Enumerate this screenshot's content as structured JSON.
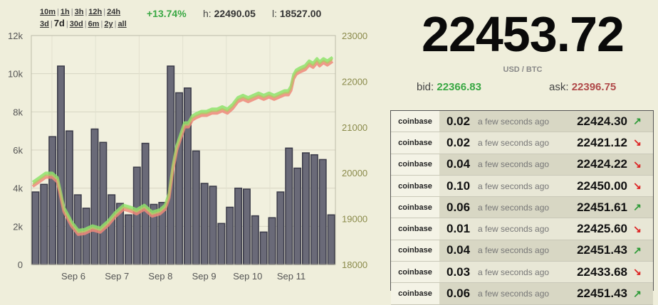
{
  "ranges": {
    "row1": [
      "10m",
      "1h",
      "3h",
      "12h",
      "24h"
    ],
    "row2": [
      "3d",
      "7d",
      "30d",
      "6m",
      "2y",
      "all"
    ],
    "active": "7d"
  },
  "stats": {
    "change": "+13.74%",
    "high_label": "h:",
    "high_value": "22490.05",
    "low_label": "l:",
    "low_value": "18527.00"
  },
  "price": {
    "last": "22453.72",
    "pair": "USD / BTC",
    "bid_label": "bid:",
    "bid_value": "22366.83",
    "ask_label": "ask:",
    "ask_value": "22396.75"
  },
  "trades": [
    {
      "exchange": "coinbase",
      "amount": "0.02",
      "time": "a few seconds ago",
      "price": "22424.30",
      "dir": "up"
    },
    {
      "exchange": "coinbase",
      "amount": "0.02",
      "time": "a few seconds ago",
      "price": "22421.12",
      "dir": "down"
    },
    {
      "exchange": "coinbase",
      "amount": "0.04",
      "time": "a few seconds ago",
      "price": "22424.22",
      "dir": "down"
    },
    {
      "exchange": "coinbase",
      "amount": "0.10",
      "time": "a few seconds ago",
      "price": "22450.00",
      "dir": "down"
    },
    {
      "exchange": "coinbase",
      "amount": "0.06",
      "time": "a few seconds ago",
      "price": "22451.61",
      "dir": "up"
    },
    {
      "exchange": "coinbase",
      "amount": "0.01",
      "time": "a few seconds ago",
      "price": "22425.60",
      "dir": "down"
    },
    {
      "exchange": "coinbase",
      "amount": "0.04",
      "time": "a few seconds ago",
      "price": "22451.43",
      "dir": "up"
    },
    {
      "exchange": "coinbase",
      "amount": "0.03",
      "time": "a few seconds ago",
      "price": "22433.68",
      "dir": "down"
    },
    {
      "exchange": "coinbase",
      "amount": "0.06",
      "time": "a few seconds ago",
      "price": "22451.43",
      "dir": "up"
    }
  ],
  "chart_data": {
    "type": "bar+line",
    "grid": true,
    "colors": {
      "volume": "#6a6a78",
      "price_green": "#8fe36b",
      "price_red": "#ee8a7a",
      "price_mid": "#b9c46a"
    },
    "x_ticks": [
      "Sep 6",
      "Sep 7",
      "Sep 8",
      "Sep 9",
      "Sep 10",
      "Sep 11"
    ],
    "y_left": {
      "ticks": [
        "0",
        "2k",
        "4k",
        "6k",
        "8k",
        "10k",
        "12k"
      ],
      "ylim": [
        0,
        12000
      ]
    },
    "y_right": {
      "ticks": [
        "18000",
        "19000",
        "20000",
        "21000",
        "22000",
        "23000"
      ],
      "ylim": [
        18000,
        23000
      ]
    },
    "volume": [
      3800,
      4200,
      6700,
      10400,
      7000,
      3650,
      2950,
      7100,
      6400,
      3650,
      3200,
      2600,
      5100,
      6350,
      3150,
      3250,
      10400,
      9000,
      9250,
      5950,
      4250,
      4100,
      2150,
      3000,
      4000,
      3950,
      2550,
      1700,
      2450,
      3800,
      6100,
      5050,
      5850,
      5750,
      5500,
      2600
    ],
    "price": [
      [
        0.0,
        19750
      ],
      [
        0.25,
        19850
      ],
      [
        0.5,
        19950
      ],
      [
        0.75,
        19950
      ],
      [
        0.95,
        19850
      ],
      [
        1.2,
        19200
      ],
      [
        1.5,
        18880
      ],
      [
        1.75,
        18700
      ],
      [
        2.0,
        18720
      ],
      [
        2.3,
        18800
      ],
      [
        2.6,
        18750
      ],
      [
        2.9,
        18900
      ],
      [
        3.2,
        19100
      ],
      [
        3.5,
        19250
      ],
      [
        3.8,
        19200
      ],
      [
        4.0,
        19150
      ],
      [
        4.3,
        19250
      ],
      [
        4.6,
        19100
      ],
      [
        4.9,
        19150
      ],
      [
        5.1,
        19250
      ],
      [
        5.25,
        19500
      ],
      [
        5.4,
        20100
      ],
      [
        5.55,
        20550
      ],
      [
        5.7,
        20800
      ],
      [
        5.85,
        21050
      ],
      [
        6.0,
        21050
      ],
      [
        6.15,
        21200
      ],
      [
        6.3,
        21250
      ],
      [
        6.5,
        21300
      ],
      [
        6.7,
        21300
      ],
      [
        6.9,
        21350
      ],
      [
        7.1,
        21350
      ],
      [
        7.3,
        21400
      ],
      [
        7.5,
        21350
      ],
      [
        7.7,
        21450
      ],
      [
        7.9,
        21600
      ],
      [
        8.1,
        21650
      ],
      [
        8.3,
        21600
      ],
      [
        8.5,
        21650
      ],
      [
        8.7,
        21700
      ],
      [
        8.9,
        21650
      ],
      [
        9.1,
        21700
      ],
      [
        9.3,
        21650
      ],
      [
        9.5,
        21700
      ],
      [
        9.7,
        21750
      ],
      [
        9.85,
        21750
      ],
      [
        9.95,
        21850
      ],
      [
        10.05,
        22100
      ],
      [
        10.15,
        22200
      ],
      [
        10.3,
        22250
      ],
      [
        10.5,
        22300
      ],
      [
        10.65,
        22400
      ],
      [
        10.8,
        22350
      ],
      [
        10.95,
        22450
      ],
      [
        11.05,
        22380
      ],
      [
        11.2,
        22450
      ],
      [
        11.35,
        22400
      ],
      [
        11.55,
        22480
      ]
    ]
  }
}
